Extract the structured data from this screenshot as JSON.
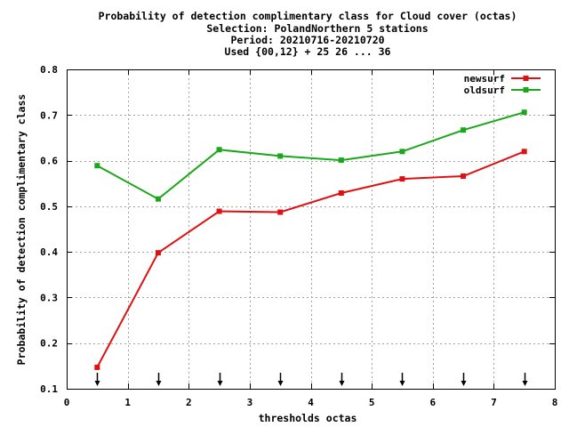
{
  "chart_data": {
    "type": "line",
    "title_lines": [
      "Probability of detection complimentary class  for Cloud cover (octas)",
      "Selection: PolandNorthern      5 stations",
      "Period: 20210716-20210720",
      "Used {00,12} + 25 26 ... 36"
    ],
    "xlabel": "thresholds octas",
    "ylabel": "Probability of detection complimentary class",
    "xlim": [
      0,
      8
    ],
    "ylim": [
      0.1,
      0.8
    ],
    "x_ticks": [
      "0",
      "1",
      "2",
      "3",
      "4",
      "5",
      "6",
      "7",
      "8"
    ],
    "y_ticks": [
      "0.1",
      "0.2",
      "0.3",
      "0.4",
      "0.5",
      "0.6",
      "0.7",
      "0.8"
    ],
    "grid": true,
    "legend_position": "top-right",
    "x": [
      0.5,
      1.5,
      2.5,
      3.5,
      4.5,
      5.5,
      6.5,
      7.5
    ],
    "series": [
      {
        "name": "newsurf",
        "color": "#e01010",
        "values": [
          0.147,
          0.398,
          0.489,
          0.487,
          0.529,
          0.56,
          0.566,
          0.62
        ]
      },
      {
        "name": "oldsurf",
        "color": "#1aa81a",
        "values": [
          0.589,
          0.516,
          0.624,
          0.61,
          0.601,
          0.62,
          0.667,
          0.706
        ]
      }
    ],
    "threshold_markers": [
      0.5,
      1.5,
      2.5,
      3.5,
      4.5,
      5.5,
      6.5,
      7.5
    ]
  }
}
